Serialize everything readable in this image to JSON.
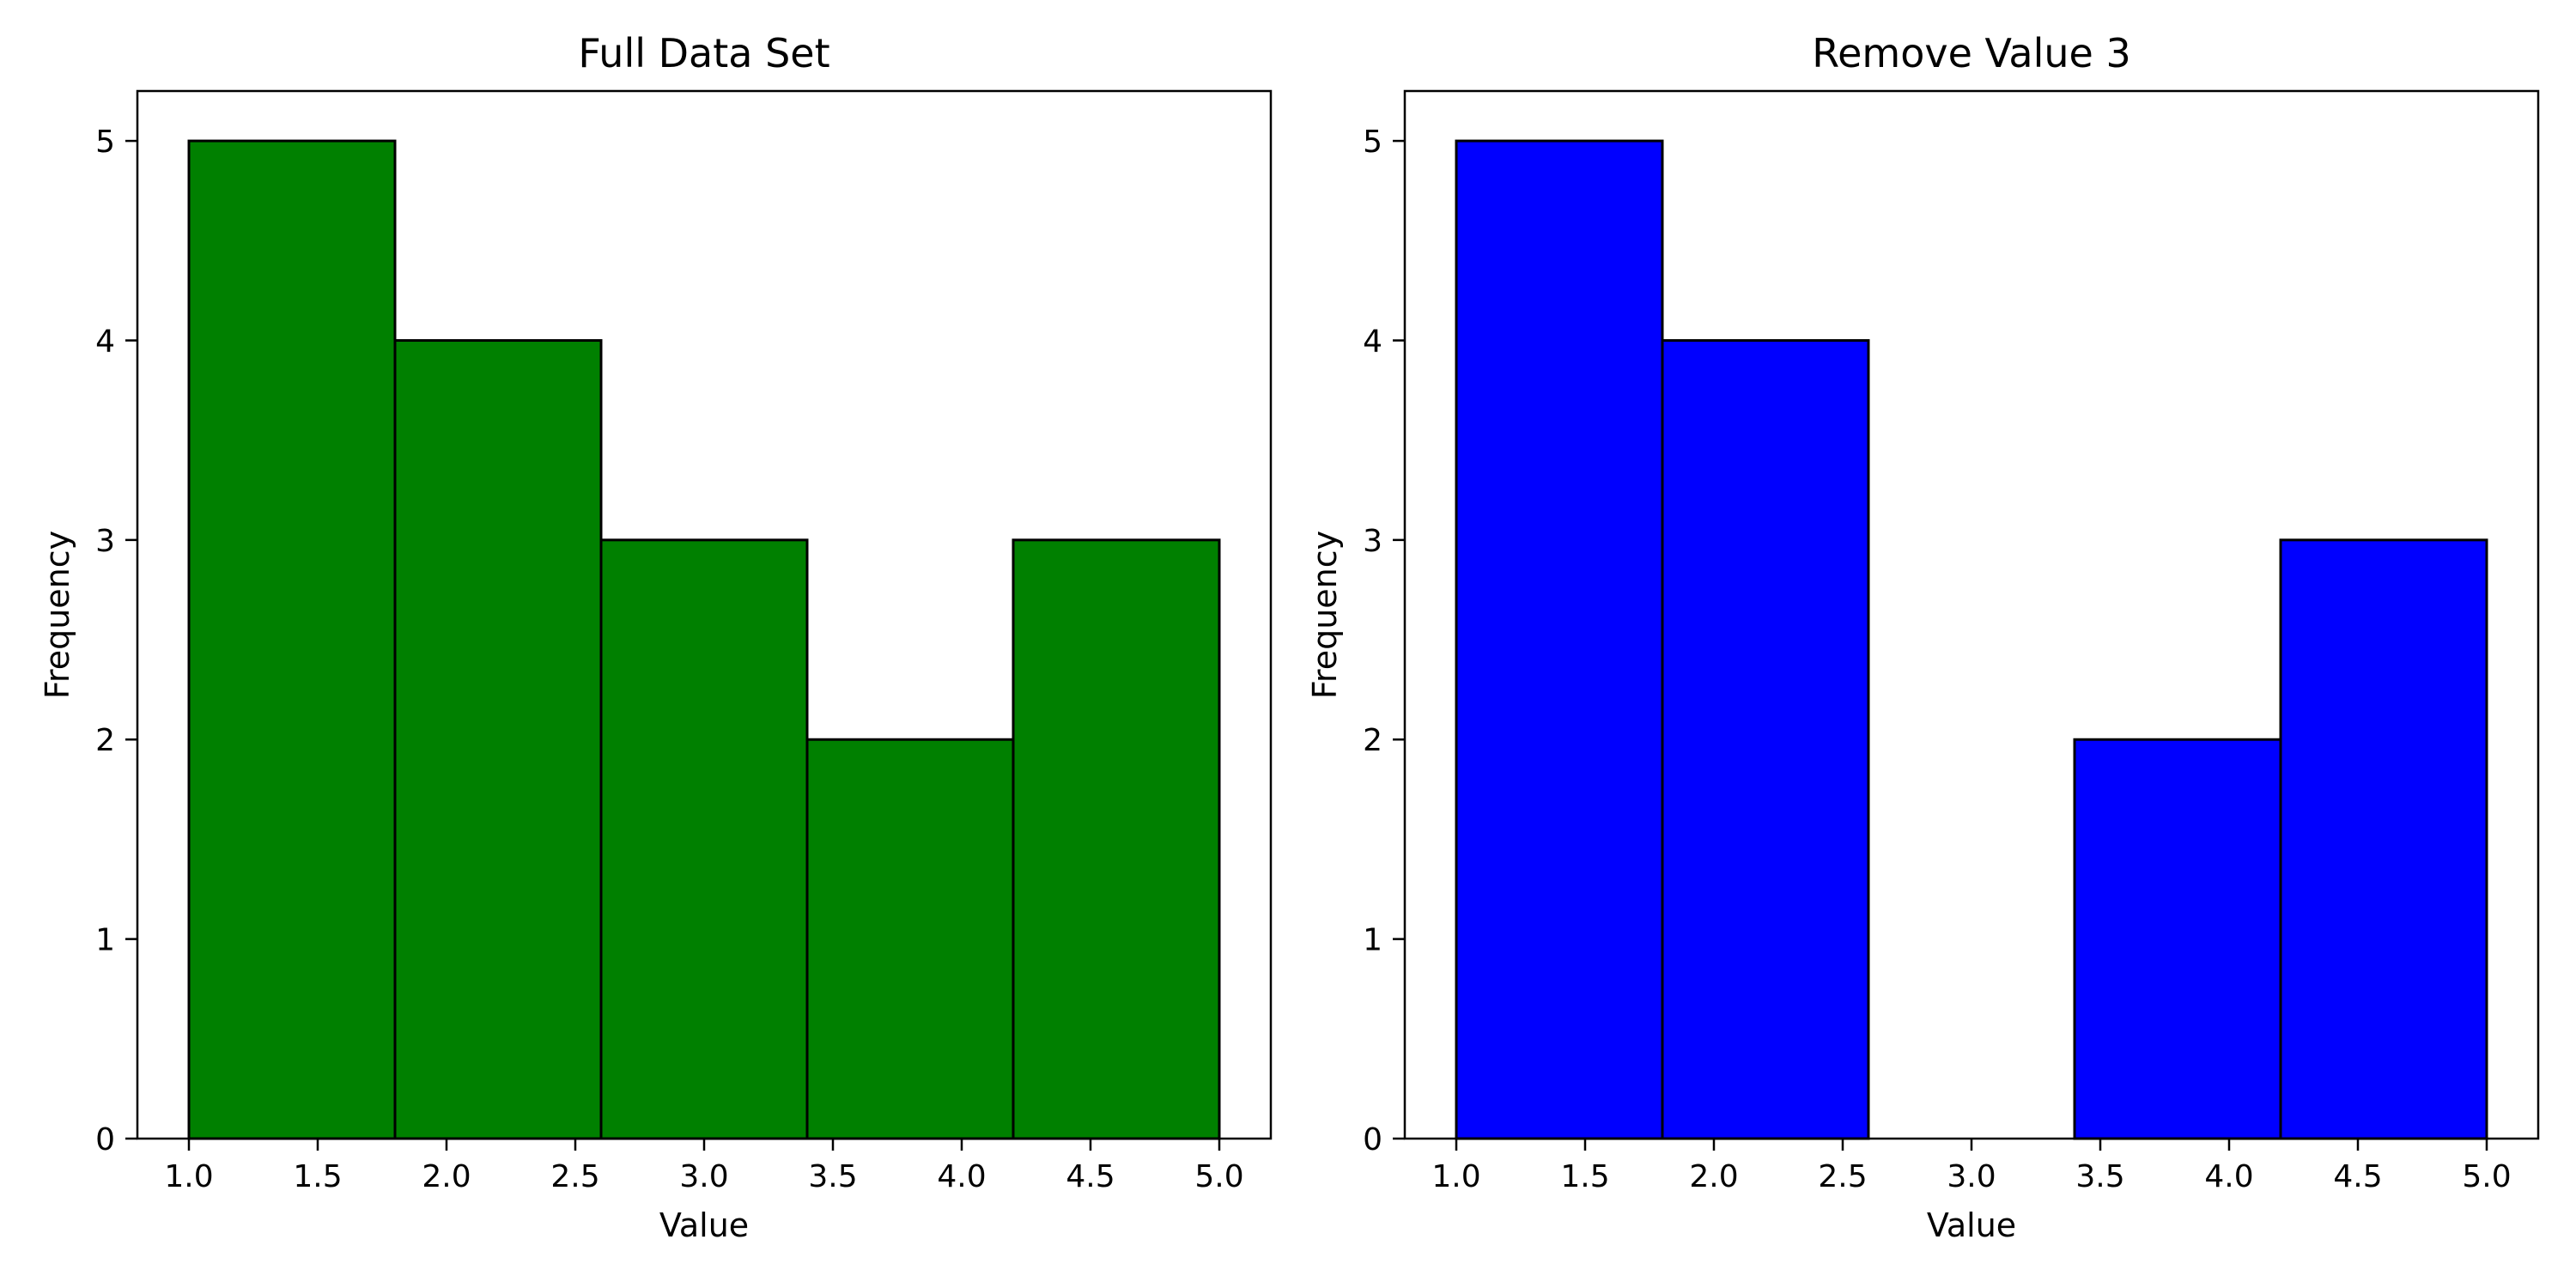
{
  "chart_data": [
    {
      "type": "bar",
      "title": "Full Data Set",
      "xlabel": "Value",
      "ylabel": "Frequency",
      "bin_edges": [
        1.0,
        1.8,
        2.6,
        3.4,
        4.2,
        5.0
      ],
      "values": [
        5,
        4,
        3,
        2,
        3
      ],
      "xlim": [
        0.8,
        5.2
      ],
      "ylim": [
        0,
        5.25
      ],
      "xticks": [
        "1.0",
        "1.5",
        "2.0",
        "2.5",
        "3.0",
        "3.5",
        "4.0",
        "4.5",
        "5.0"
      ],
      "yticks": [
        "0",
        "1",
        "2",
        "3",
        "4",
        "5"
      ],
      "color": "#008000",
      "edge_color": "#000000",
      "grid": false,
      "legend": "none"
    },
    {
      "type": "bar",
      "title": "Remove Value 3",
      "xlabel": "Value",
      "ylabel": "Frequency",
      "bin_edges": [
        1.0,
        1.8,
        2.6,
        3.4,
        4.2,
        5.0
      ],
      "values": [
        5,
        4,
        0,
        2,
        3
      ],
      "xlim": [
        0.8,
        5.2
      ],
      "ylim": [
        0,
        5.25
      ],
      "xticks": [
        "1.0",
        "1.5",
        "2.0",
        "2.5",
        "3.0",
        "3.5",
        "4.0",
        "4.5",
        "5.0"
      ],
      "yticks": [
        "0",
        "1",
        "2",
        "3",
        "4",
        "5"
      ],
      "color": "#0000ff",
      "edge_color": "#000000",
      "grid": false,
      "legend": "none"
    }
  ]
}
